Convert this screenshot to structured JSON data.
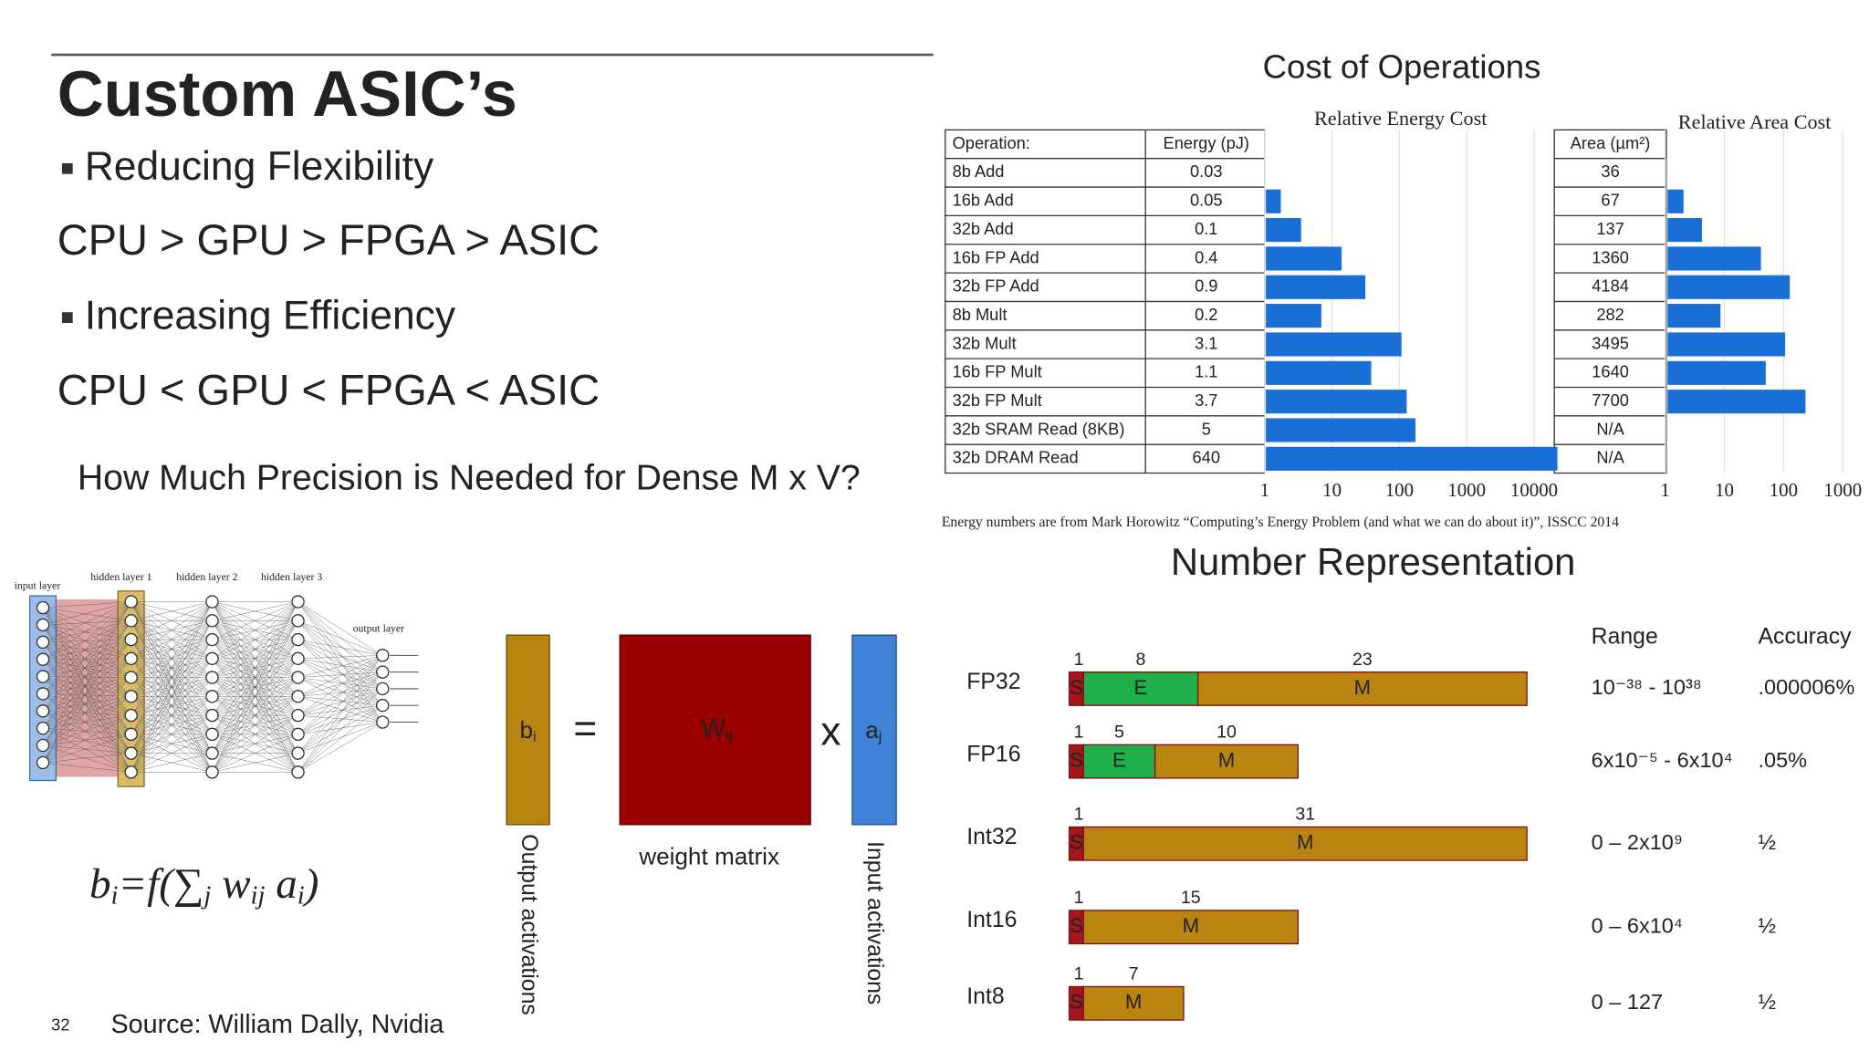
{
  "title": "Custom ASIC’s",
  "points": [
    "Reducing Flexibility",
    "CPU > GPU > FPGA > ASIC",
    "Increasing Efficiency",
    "CPU < GPU < FPGA < ASIC"
  ],
  "precision_heading": "How Much Precision is Needed for Dense M x V?",
  "network_labels": {
    "input": "input layer",
    "hidden": [
      "hidden layer 1",
      "hidden layer 2",
      "hidden layer 3"
    ],
    "output": "output layer"
  },
  "matrix": {
    "b": {
      "text": "b",
      "sub": "i"
    },
    "equals": "=",
    "w": {
      "text": "W",
      "sub": "ij"
    },
    "times": "x",
    "a": {
      "text": "a",
      "sub": "j"
    },
    "caption": "weight matrix",
    "output": "Output activations",
    "input": "Input activations"
  },
  "formula": [
    {
      "text": "b",
      "sub": "i"
    },
    {
      "text": "=f(∑",
      "sub": "j"
    },
    {
      "text": " w",
      "sub": "ij"
    },
    {
      "text": " a",
      "sub": "i"
    },
    {
      "text": ")"
    }
  ],
  "page_number": "32",
  "source": "Source: William Dally, Nvidia",
  "cost": {
    "title": "Cost of Operations",
    "energy_title": "Relative Energy Cost",
    "area_title": "Relative Area Cost",
    "headers": [
      "Operation:",
      "Energy (pJ)",
      "Area (µm²)"
    ],
    "rows": [
      {
        "op": "8b Add",
        "energy": 0.03,
        "area": 36
      },
      {
        "op": "16b Add",
        "energy": 0.05,
        "area": 67
      },
      {
        "op": "32b Add",
        "energy": 0.1,
        "area": 137
      },
      {
        "op": "16b FP Add",
        "energy": 0.4,
        "area": 1360
      },
      {
        "op": "32b FP Add",
        "energy": 0.9,
        "area": 4184
      },
      {
        "op": "8b Mult",
        "energy": 0.2,
        "area": 282
      },
      {
        "op": "32b Mult",
        "energy": 3.1,
        "area": 3495
      },
      {
        "op": "16b FP Mult",
        "energy": 1.1,
        "area": 1640
      },
      {
        "op": "32b FP Mult",
        "energy": 3.7,
        "area": 7700
      },
      {
        "op": "32b SRAM Read (8KB)",
        "energy": 5,
        "area": "N/A"
      },
      {
        "op": "32b DRAM Read",
        "energy": 640,
        "area": "N/A"
      }
    ],
    "energy_ticks": [
      1,
      10,
      100,
      1000,
      10000
    ],
    "area_ticks": [
      1,
      10,
      100,
      1000
    ],
    "log_scale": true,
    "bar_color": "#1a6fd6",
    "footnote": "Energy numbers are from Mark Horowitz “Computing’s Energy Problem (and what we can do about it)”, ISSCC 2014"
  },
  "numbers": {
    "title": "Number Representation",
    "headers": [
      "Range",
      "Accuracy"
    ],
    "field_colors": {
      "S": "#a3161b",
      "E": "#1fb04b",
      "M": "#b9840f"
    },
    "formats": [
      {
        "name": "FP32",
        "fields": [
          {
            "letter": "S",
            "bits": 1
          },
          {
            "letter": "E",
            "bits": 8
          },
          {
            "letter": "M",
            "bits": 23
          }
        ],
        "range": "10⁻³⁸ - 10³⁸",
        "accuracy": ".000006%"
      },
      {
        "name": "FP16",
        "fields": [
          {
            "letter": "S",
            "bits": 1
          },
          {
            "letter": "E",
            "bits": 5
          },
          {
            "letter": "M",
            "bits": 10
          }
        ],
        "range": "6x10⁻⁵ - 6x10⁴",
        "accuracy": ".05%"
      },
      {
        "name": "Int32",
        "fields": [
          {
            "letter": "S",
            "bits": 1
          },
          {
            "letter": "M",
            "bits": 31
          }
        ],
        "range": "0 – 2x10⁹",
        "accuracy": "½"
      },
      {
        "name": "Int16",
        "fields": [
          {
            "letter": "S",
            "bits": 1
          },
          {
            "letter": "M",
            "bits": 15
          }
        ],
        "range": "0 – 6x10⁴",
        "accuracy": "½"
      },
      {
        "name": "Int8",
        "fields": [
          {
            "letter": "S",
            "bits": 1
          },
          {
            "letter": "M",
            "bits": 7
          }
        ],
        "range": "0 – 127",
        "accuracy": "½"
      }
    ]
  }
}
